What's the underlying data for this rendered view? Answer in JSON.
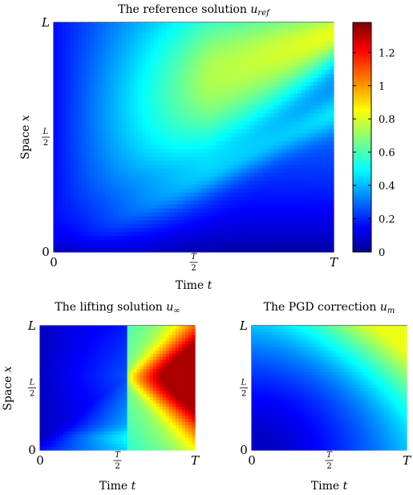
{
  "chart_data": [
    {
      "type": "heatmap",
      "id": "main",
      "title_text": "The reference solution ",
      "title_symbol": "u",
      "title_sub": "ref",
      "xlabel_text": "Time ",
      "xlabel_var": "t",
      "ylabel_text": "Space ",
      "ylabel_var": "x",
      "x_ticks": [
        "0",
        "T/2",
        "T"
      ],
      "y_ticks": [
        "0",
        "L/2",
        "L"
      ],
      "field": "reference",
      "colorbar": {
        "min": 0,
        "max": 1.38,
        "ticks": [
          0,
          0.2,
          0.4,
          0.6,
          0.8,
          1,
          1.2
        ],
        "tick_labels": [
          "0",
          "0.2",
          "0.4",
          "0.6",
          "0.8",
          "1",
          "1.2"
        ]
      }
    },
    {
      "type": "heatmap",
      "id": "lifting",
      "title_text": "The lifting solution ",
      "title_symbol": "u",
      "title_sub": "∞",
      "xlabel_text": "Time ",
      "xlabel_var": "t",
      "ylabel_text": "Space ",
      "ylabel_var": "x",
      "x_ticks": [
        "0",
        "T/2",
        "T"
      ],
      "y_ticks": [
        "0",
        "L/2",
        "L"
      ],
      "field": "lifting"
    },
    {
      "type": "heatmap",
      "id": "pgd",
      "title_text": "The PGD correction ",
      "title_symbol": "u",
      "title_sub": "m",
      "xlabel_text": "Time ",
      "xlabel_var": "t",
      "ylabel_text": "",
      "ylabel_var": "",
      "x_ticks": [
        "0",
        "T/2",
        "T"
      ],
      "y_ticks": [
        "0",
        "L/2",
        "L"
      ],
      "field": "pgd"
    }
  ],
  "colormap": [
    "#00008f",
    "#0000ff",
    "#00ffff",
    "#ffff00",
    "#ff0000",
    "#800000"
  ]
}
